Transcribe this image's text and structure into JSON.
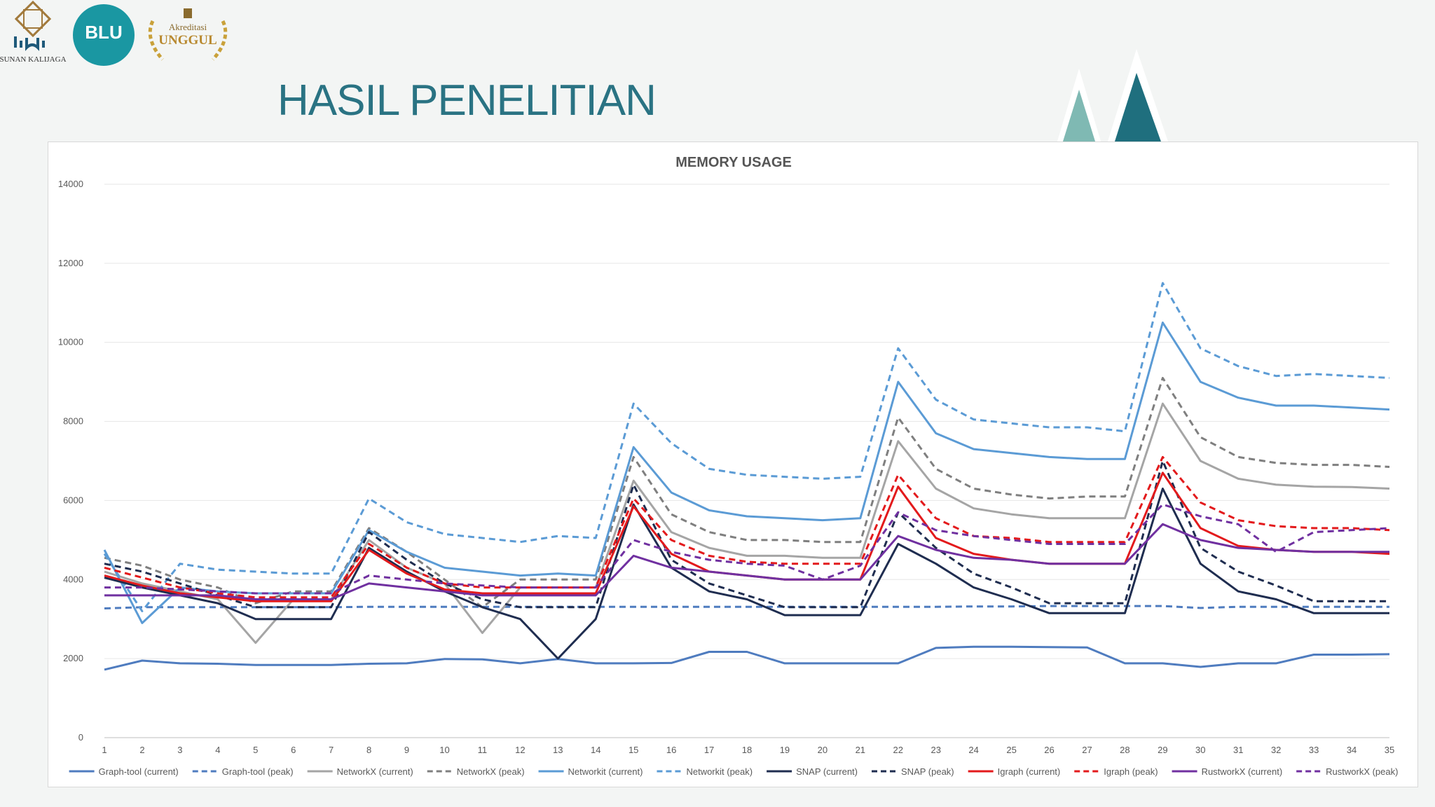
{
  "header": {
    "logo_uin_name": "SUNAN KALIJAGA",
    "logo_blu": "BLU",
    "badge_top": "Akreditasi",
    "badge_main": "UNGGUL",
    "page_title": "HASIL PENELITIAN"
  },
  "colors": {
    "title": "#2a7383",
    "teal_dark": "#1f6f7e",
    "teal_light": "#7fb9b3",
    "blu_circle": "#1a97a2"
  },
  "chart_data": {
    "type": "line",
    "title": "MEMORY USAGE",
    "xlabel": "",
    "ylabel": "",
    "ylim": [
      0,
      14000
    ],
    "yticks": [
      0,
      2000,
      4000,
      6000,
      8000,
      10000,
      12000,
      14000
    ],
    "grid": true,
    "legend_position": "bottom",
    "x": [
      "1",
      "2",
      "3",
      "4",
      "5",
      "6",
      "7",
      "8",
      "9",
      "10",
      "11",
      "12",
      "13",
      "14",
      "15",
      "16",
      "17",
      "18",
      "19",
      "20",
      "21",
      "22",
      "23",
      "24",
      "25",
      "26",
      "27",
      "28",
      "29",
      "30",
      "31",
      "32",
      "33",
      "34",
      "35"
    ],
    "series": [
      {
        "name": "Graph-tool (current)",
        "color": "#4f7cbf",
        "dash": "solid",
        "values": [
          1720,
          1950,
          1880,
          1870,
          1840,
          1840,
          1840,
          1870,
          1880,
          1990,
          1980,
          1880,
          1990,
          1880,
          1880,
          1890,
          2170,
          2170,
          1880,
          1880,
          1880,
          1880,
          2270,
          2300,
          2300,
          2290,
          2280,
          1880,
          1880,
          1790,
          1880,
          1880,
          2100,
          2100,
          2110
        ]
      },
      {
        "name": "Graph-tool (peak)",
        "color": "#4f7cbf",
        "dash": "dashed",
        "values": [
          3270,
          3300,
          3300,
          3300,
          3300,
          3300,
          3300,
          3310,
          3310,
          3310,
          3310,
          3310,
          3310,
          3310,
          3310,
          3310,
          3310,
          3310,
          3310,
          3310,
          3310,
          3310,
          3310,
          3320,
          3320,
          3330,
          3330,
          3330,
          3330,
          3280,
          3310,
          3310,
          3310,
          3310,
          3310
        ]
      },
      {
        "name": "NetworkX (current)",
        "color": "#a5a5a5",
        "dash": "solid",
        "values": [
          4200,
          3900,
          3700,
          3500,
          2400,
          3500,
          3500,
          5000,
          4300,
          3900,
          2650,
          3800,
          3800,
          3800,
          6500,
          5200,
          4800,
          4600,
          4600,
          4550,
          4550,
          7500,
          6300,
          5800,
          5650,
          5550,
          5550,
          5550,
          8450,
          7000,
          6550,
          6400,
          6350,
          6340,
          6300
        ]
      },
      {
        "name": "NetworkX (peak)",
        "color": "#7f7f7f",
        "dash": "dashed",
        "values": [
          4550,
          4350,
          4000,
          3800,
          3400,
          3700,
          3700,
          5300,
          4700,
          4000,
          3300,
          4000,
          4000,
          4000,
          7100,
          5650,
          5200,
          5000,
          5000,
          4950,
          4950,
          8100,
          6800,
          6300,
          6150,
          6050,
          6100,
          6100,
          9100,
          7600,
          7100,
          6950,
          6900,
          6900,
          6850
        ]
      },
      {
        "name": "Networkit (current)",
        "color": "#5b9bd5",
        "dash": "solid",
        "values": [
          4750,
          2900,
          3800,
          3700,
          3650,
          3650,
          3650,
          5250,
          4700,
          4300,
          4200,
          4100,
          4150,
          4100,
          7350,
          6200,
          5750,
          5600,
          5550,
          5500,
          5550,
          9000,
          7700,
          7300,
          7200,
          7100,
          7050,
          7050,
          10500,
          9000,
          8600,
          8400,
          8400,
          8350,
          8300
        ]
      },
      {
        "name": "Networkit (peak)",
        "color": "#5b9bd5",
        "dash": "dashed",
        "values": [
          4650,
          3200,
          4400,
          4250,
          4200,
          4150,
          4150,
          6050,
          5450,
          5150,
          5050,
          4950,
          5100,
          5050,
          8450,
          7450,
          6800,
          6650,
          6600,
          6550,
          6600,
          9850,
          8550,
          8050,
          7950,
          7850,
          7850,
          7750,
          11500,
          9850,
          9400,
          9150,
          9200,
          9150,
          9100
        ]
      },
      {
        "name": "SNAP (current)",
        "color": "#1f2d50",
        "dash": "solid",
        "values": [
          4050,
          3800,
          3600,
          3400,
          3000,
          3000,
          3000,
          4800,
          4200,
          3700,
          3300,
          3000,
          2000,
          3000,
          5900,
          4300,
          3700,
          3500,
          3100,
          3100,
          3100,
          4900,
          4400,
          3800,
          3500,
          3150,
          3150,
          3150,
          6300,
          4400,
          3700,
          3500,
          3150,
          3150,
          3150
        ]
      },
      {
        "name": "SNAP (peak)",
        "color": "#1f2d50",
        "dash": "dashed",
        "values": [
          4400,
          4200,
          3900,
          3600,
          3300,
          3300,
          3300,
          5200,
          4500,
          3900,
          3500,
          3300,
          3300,
          3300,
          6400,
          4500,
          3900,
          3600,
          3300,
          3300,
          3300,
          5700,
          4800,
          4150,
          3800,
          3400,
          3400,
          3400,
          7000,
          4800,
          4200,
          3850,
          3450,
          3450,
          3450
        ]
      },
      {
        "name": "Igraph (current)",
        "color": "#e31a1c",
        "dash": "solid",
        "values": [
          4100,
          3850,
          3650,
          3550,
          3450,
          3450,
          3450,
          4750,
          4150,
          3750,
          3650,
          3650,
          3650,
          3650,
          5850,
          4650,
          4200,
          4100,
          4000,
          4000,
          4000,
          6350,
          5050,
          4650,
          4500,
          4400,
          4400,
          4400,
          6700,
          5300,
          4850,
          4750,
          4700,
          4700,
          4650
        ]
      },
      {
        "name": "Igraph (peak)",
        "color": "#e31a1c",
        "dash": "dashed",
        "values": [
          4300,
          4050,
          3800,
          3650,
          3550,
          3550,
          3550,
          4900,
          4300,
          3900,
          3800,
          3800,
          3800,
          3800,
          6050,
          5000,
          4600,
          4450,
          4400,
          4400,
          4400,
          6650,
          5550,
          5100,
          5050,
          4950,
          4950,
          4950,
          7100,
          5950,
          5500,
          5350,
          5300,
          5300,
          5250
        ]
      },
      {
        "name": "RustworkX (current)",
        "color": "#7030a0",
        "dash": "solid",
        "values": [
          3600,
          3600,
          3600,
          3600,
          3500,
          3500,
          3500,
          3900,
          3800,
          3700,
          3600,
          3600,
          3600,
          3600,
          4600,
          4300,
          4200,
          4100,
          4000,
          4000,
          4000,
          5100,
          4750,
          4550,
          4500,
          4400,
          4400,
          4400,
          5400,
          5000,
          4800,
          4750,
          4700,
          4700,
          4700
        ]
      },
      {
        "name": "RustworkX (peak)",
        "color": "#7030a0",
        "dash": "dashed",
        "values": [
          3800,
          3800,
          3750,
          3700,
          3650,
          3650,
          3650,
          4100,
          4000,
          3900,
          3850,
          3800,
          3800,
          3800,
          5000,
          4700,
          4500,
          4400,
          4350,
          4000,
          4350,
          5700,
          5250,
          5100,
          5000,
          4900,
          4900,
          4900,
          5900,
          5600,
          5400,
          4700,
          5200,
          5250,
          5300
        ]
      }
    ]
  }
}
